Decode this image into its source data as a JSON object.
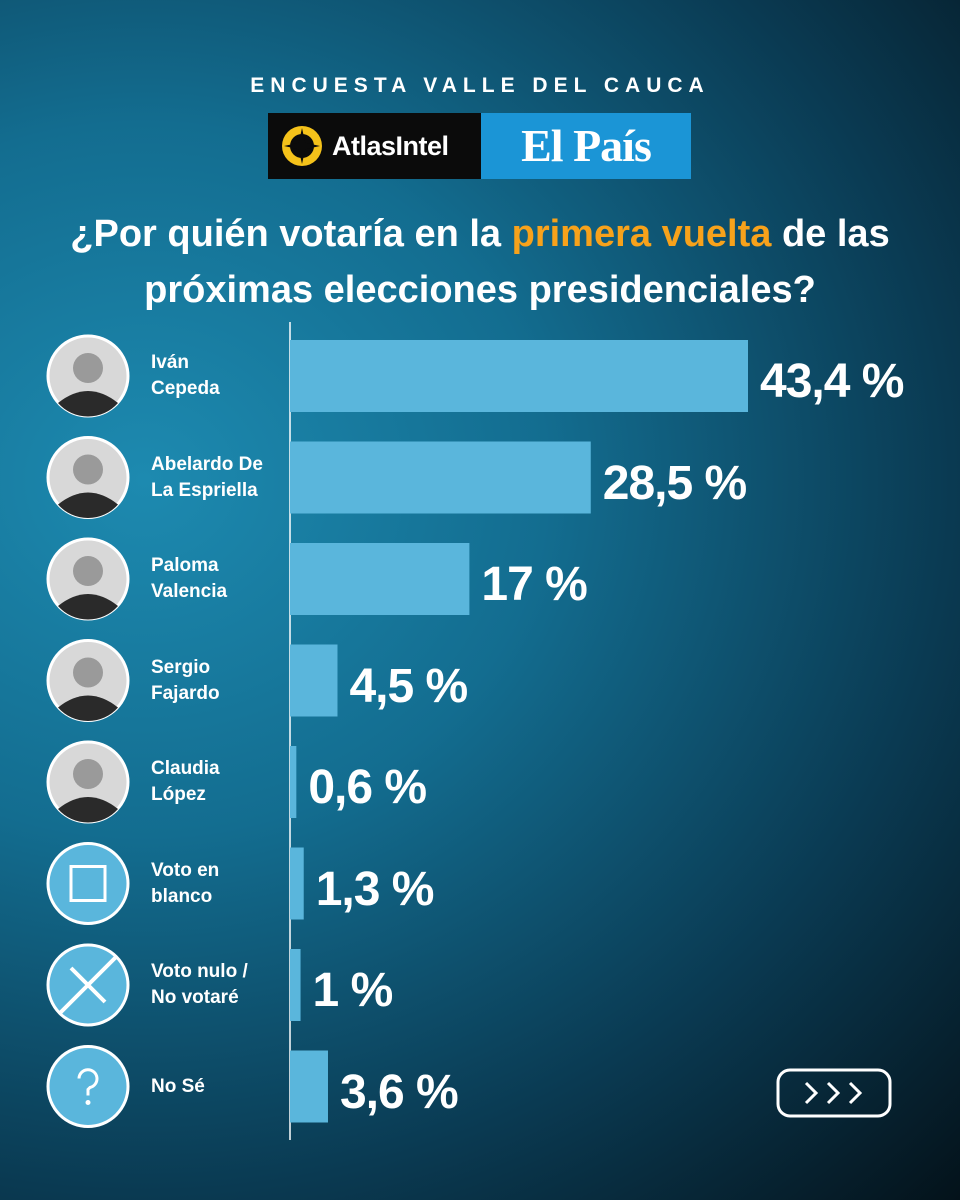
{
  "header": {
    "kicker": "ENCUESTA VALLE DEL CAUCA",
    "brand_left": "AtlasIntel",
    "brand_right": "El País"
  },
  "chart_data": {
    "type": "bar",
    "orientation": "horizontal",
    "title": [
      "¿Por quién votaría en la",
      "primera vuelta",
      "de las próximas elecciones presidenciales?"
    ],
    "categories": [
      "Iván Cepeda",
      "Abelardo De La Espriella",
      "Paloma Valencia",
      "Sergio Fajardo",
      "Claudia López",
      "Voto en blanco",
      "Voto nulo / No votaré",
      "No Sé"
    ],
    "values": [
      43.4,
      28.5,
      17,
      4.5,
      0.6,
      1.3,
      1,
      3.6
    ],
    "value_labels": [
      "43,4 %",
      "28,5 %",
      "17 %",
      "4,5 %",
      "0,6 %",
      "1,3 %",
      "1 %",
      "3,6 %"
    ],
    "color": "#5ab6dc"
  }
}
